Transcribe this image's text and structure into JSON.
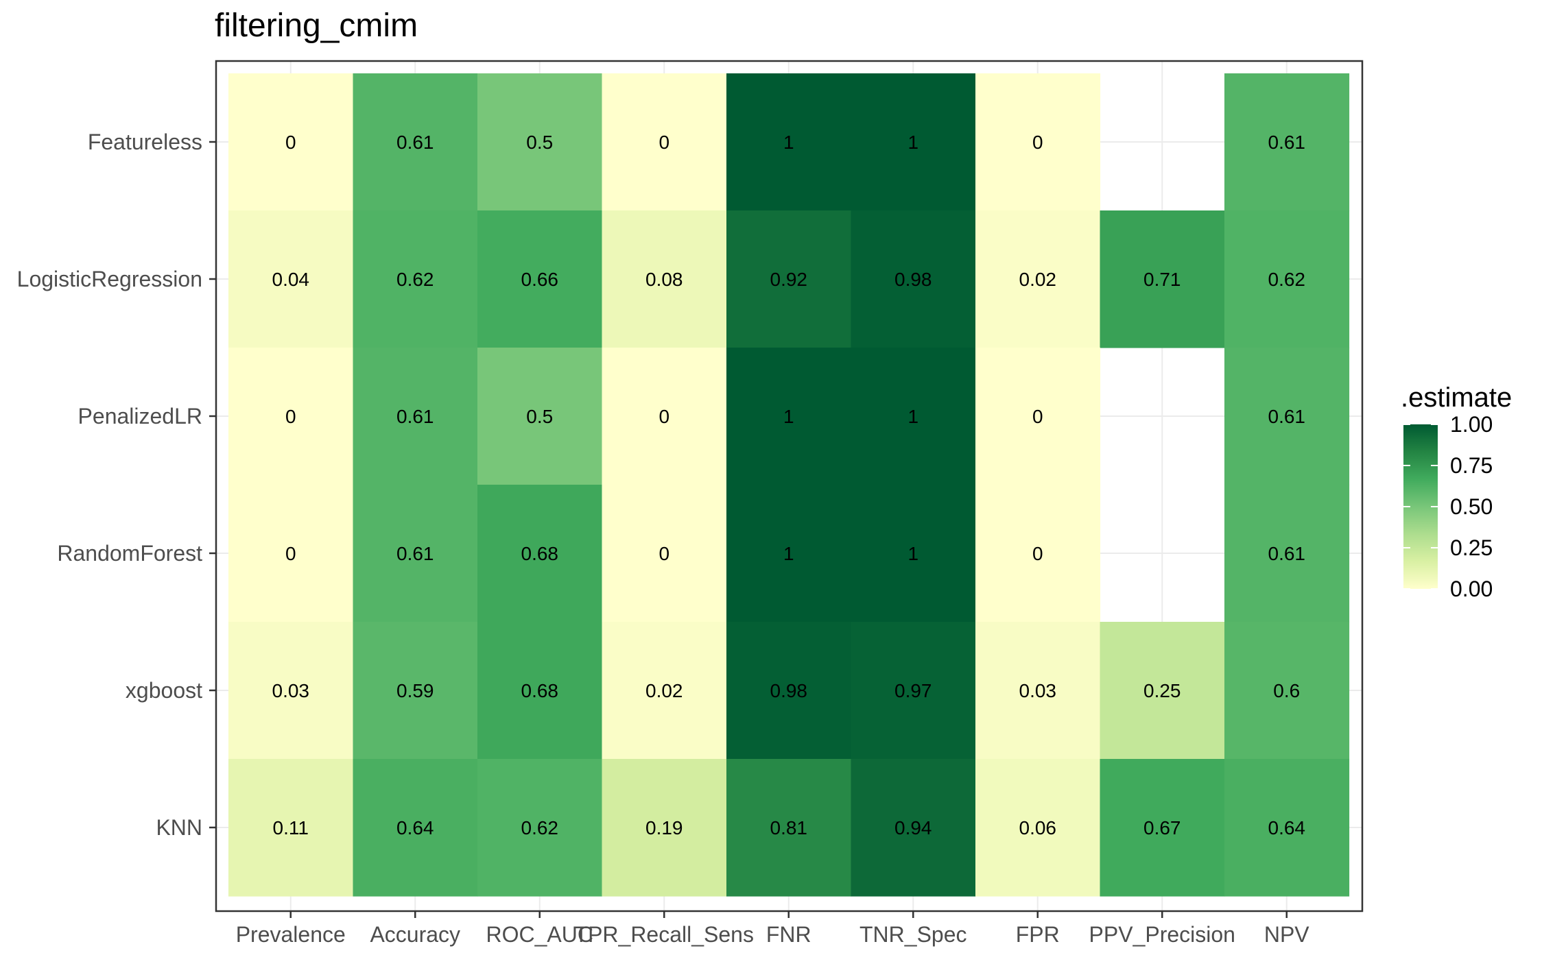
{
  "chart_data": {
    "type": "heatmap",
    "title": "filtering_cmim",
    "xlabel": "",
    "ylabel": "",
    "x_categories": [
      "Prevalence",
      "Accuracy",
      "ROC_AUC",
      "TPR_Recall_Sens",
      "FNR",
      "TNR_Spec",
      "FPR",
      "PPV_Precision",
      "NPV"
    ],
    "y_categories": [
      "Featureless",
      "LogisticRegression",
      "PenalizedLR",
      "RandomForest",
      "xgboost",
      "KNN"
    ],
    "values": [
      [
        0,
        0.61,
        0.5,
        0,
        1,
        1,
        0,
        null,
        0.61
      ],
      [
        0.04,
        0.62,
        0.66,
        0.08,
        0.92,
        0.98,
        0.02,
        0.71,
        0.62
      ],
      [
        0,
        0.61,
        0.5,
        0,
        1,
        1,
        0,
        null,
        0.61
      ],
      [
        0,
        0.61,
        0.68,
        0,
        1,
        1,
        0,
        null,
        0.61
      ],
      [
        0.03,
        0.59,
        0.68,
        0.02,
        0.98,
        0.97,
        0.03,
        0.25,
        0.6
      ],
      [
        0.11,
        0.64,
        0.62,
        0.19,
        0.81,
        0.94,
        0.06,
        0.67,
        0.64
      ]
    ],
    "labels": [
      [
        "0",
        "0.61",
        "0.5",
        "0",
        "1",
        "1",
        "0",
        "",
        "0.61"
      ],
      [
        "0.04",
        "0.62",
        "0.66",
        "0.08",
        "0.92",
        "0.98",
        "0.02",
        "0.71",
        "0.62"
      ],
      [
        "0",
        "0.61",
        "0.5",
        "0",
        "1",
        "1",
        "0",
        "",
        "0.61"
      ],
      [
        "0",
        "0.61",
        "0.68",
        "0",
        "1",
        "1",
        "0",
        "",
        "0.61"
      ],
      [
        "0.03",
        "0.59",
        "0.68",
        "0.02",
        "0.98",
        "0.97",
        "0.03",
        "0.25",
        "0.6"
      ],
      [
        "0.11",
        "0.64",
        "0.62",
        "0.19",
        "0.81",
        "0.94",
        "0.06",
        "0.67",
        "0.64"
      ]
    ],
    "legend": {
      "title": ".estimate",
      "position": "right",
      "range": [
        0,
        1
      ],
      "ticks": [
        "0.00",
        "0.25",
        "0.50",
        "0.75",
        "1.00"
      ]
    },
    "colorscale": [
      "#ffffcc",
      "#d9f0a3",
      "#addd8e",
      "#78c679",
      "#41ab5d",
      "#238443",
      "#005a32"
    ],
    "grid": true
  }
}
